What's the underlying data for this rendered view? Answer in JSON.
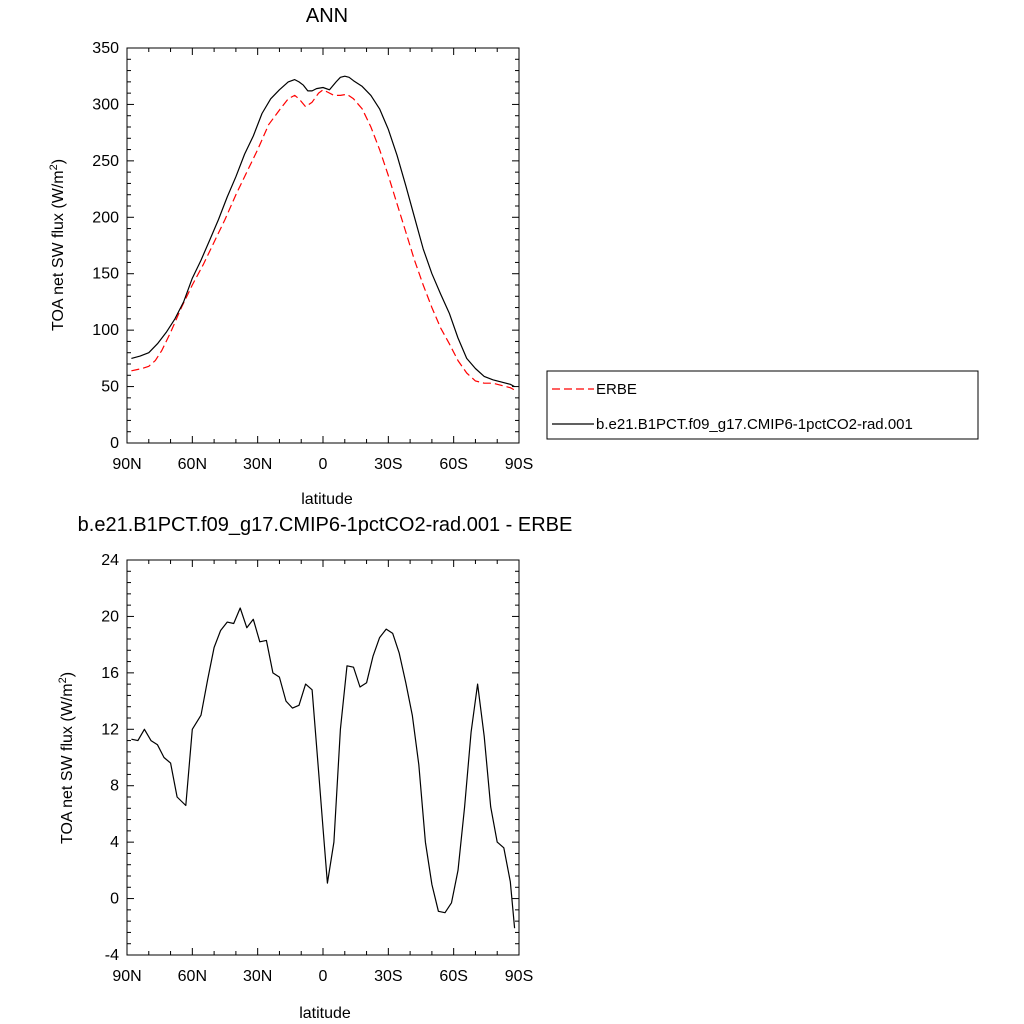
{
  "chart_data": [
    {
      "type": "line",
      "title": "ANN",
      "xlabel": "latitude",
      "ylabel": "TOA net SW flux",
      "ylabel_unit": "(W/m",
      "ylabel_sup": "2",
      "ylabel_close": ")",
      "xlim": [
        -90,
        90
      ],
      "ylim": [
        0,
        350
      ],
      "x_ticks": [
        {
          "value": -90,
          "label": "90N"
        },
        {
          "value": -60,
          "label": "60N"
        },
        {
          "value": -30,
          "label": "30N"
        },
        {
          "value": 0,
          "label": "0"
        },
        {
          "value": 30,
          "label": "30S"
        },
        {
          "value": 60,
          "label": "60S"
        },
        {
          "value": 90,
          "label": "90S"
        }
      ],
      "y_ticks": [
        0,
        50,
        100,
        150,
        200,
        250,
        300,
        350
      ],
      "legend_position": "right",
      "series": [
        {
          "name": "ERBE",
          "color": "#ff0000",
          "dash": "dashed",
          "x": [
            -88,
            -83,
            -80,
            -77,
            -74,
            -70,
            -65,
            -60,
            -55,
            -50,
            -45,
            -40,
            -35,
            -30,
            -25,
            -20,
            -16,
            -13,
            -11,
            -8,
            -5,
            -2,
            0,
            2,
            5,
            8,
            11,
            14,
            18,
            22,
            26,
            30,
            34,
            38,
            42,
            46,
            50,
            54,
            58,
            62,
            66,
            70,
            74,
            78,
            82,
            86,
            88
          ],
          "y": [
            64,
            66,
            68,
            73,
            82,
            98,
            120,
            140,
            158,
            178,
            198,
            220,
            240,
            260,
            282,
            295,
            305,
            308,
            305,
            298,
            302,
            310,
            313,
            311,
            308,
            308,
            309,
            305,
            296,
            280,
            260,
            237,
            212,
            187,
            162,
            140,
            120,
            102,
            88,
            73,
            62,
            55,
            53,
            53,
            51,
            49,
            47
          ]
        },
        {
          "name": "b.e21.B1PCT.f09_g17.CMIP6-1pctCO2-rad.001",
          "color": "#000000",
          "dash": "solid",
          "x": [
            -88,
            -84,
            -80,
            -76,
            -72,
            -68,
            -64,
            -60,
            -56,
            -52,
            -48,
            -44,
            -40,
            -36,
            -32,
            -28,
            -24,
            -20,
            -16,
            -13,
            -11,
            -9,
            -7,
            -5,
            -3,
            0,
            3,
            6,
            8,
            10,
            12,
            14,
            18,
            22,
            26,
            30,
            34,
            38,
            42,
            46,
            50,
            54,
            58,
            62,
            66,
            70,
            74,
            78,
            82,
            86,
            88
          ],
          "y": [
            75,
            77,
            80,
            88,
            98,
            110,
            125,
            146,
            162,
            180,
            198,
            218,
            236,
            256,
            272,
            292,
            305,
            313,
            320,
            322,
            320,
            317,
            312,
            312,
            314,
            315,
            313,
            320,
            324,
            325,
            324,
            321,
            316,
            308,
            296,
            278,
            255,
            228,
            200,
            172,
            150,
            132,
            115,
            93,
            75,
            66,
            59,
            56,
            54,
            52,
            50
          ]
        }
      ]
    },
    {
      "type": "line",
      "title": "b.e21.B1PCT.f09_g17.CMIP6-1pctCO2-rad.001 - ERBE",
      "xlabel": "latitude",
      "ylabel": "TOA net SW flux",
      "ylabel_unit": "(W/m",
      "ylabel_sup": "2",
      "ylabel_close": ")",
      "xlim": [
        -90,
        90
      ],
      "ylim": [
        -4,
        24
      ],
      "x_ticks": [
        {
          "value": -90,
          "label": "90N"
        },
        {
          "value": -60,
          "label": "60N"
        },
        {
          "value": -30,
          "label": "30N"
        },
        {
          "value": 0,
          "label": "0"
        },
        {
          "value": 30,
          "label": "30S"
        },
        {
          "value": 60,
          "label": "60S"
        },
        {
          "value": 90,
          "label": "90S"
        }
      ],
      "y_ticks": [
        -4,
        0,
        4,
        8,
        12,
        16,
        20,
        24
      ],
      "series": [
        {
          "color": "#000000",
          "dash": "solid",
          "x": [
            -88,
            -85,
            -82,
            -79,
            -76,
            -73,
            -70,
            -67,
            -63,
            -60,
            -56,
            -53,
            -50,
            -47,
            -44,
            -41,
            -38,
            -35,
            -32,
            -29,
            -26,
            -23,
            -20,
            -17,
            -14,
            -11,
            -8,
            -5,
            -2,
            0,
            2,
            5,
            8,
            11,
            14,
            17,
            20,
            23,
            26,
            29,
            32,
            35,
            38,
            41,
            44,
            47,
            50,
            53,
            56,
            59,
            62,
            65,
            68,
            71,
            74,
            77,
            80,
            83,
            86,
            88
          ],
          "y": [
            11.3,
            11.2,
            12.0,
            11.2,
            10.9,
            10.0,
            9.6,
            7.2,
            6.6,
            12.0,
            13.0,
            15.5,
            17.8,
            19.0,
            19.6,
            19.5,
            20.6,
            19.2,
            19.8,
            18.2,
            18.3,
            16.0,
            15.7,
            14.0,
            13.5,
            13.7,
            15.2,
            14.8,
            9.0,
            5.0,
            1.1,
            4.0,
            12.0,
            16.5,
            16.4,
            15.0,
            15.3,
            17.2,
            18.5,
            19.1,
            18.8,
            17.4,
            15.3,
            13.0,
            9.5,
            4.0,
            1.0,
            -0.9,
            -1.0,
            -0.3,
            2.0,
            6.5,
            11.8,
            15.2,
            11.5,
            6.5,
            4.0,
            3.6,
            1.2,
            -2.1
          ]
        }
      ]
    }
  ]
}
